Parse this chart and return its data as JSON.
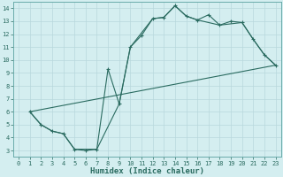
{
  "xlabel": "Humidex (Indice chaleur)",
  "bg_color": "#d4eef0",
  "line_color": "#2a6b60",
  "grid_color": "#b8d8dc",
  "xlim": [
    -0.5,
    23.5
  ],
  "ylim": [
    2.5,
    14.5
  ],
  "xticks": [
    0,
    1,
    2,
    3,
    4,
    5,
    6,
    7,
    8,
    9,
    10,
    11,
    12,
    13,
    14,
    15,
    16,
    17,
    18,
    19,
    20,
    21,
    22,
    23
  ],
  "yticks": [
    3,
    4,
    5,
    6,
    7,
    8,
    9,
    10,
    11,
    12,
    13,
    14
  ],
  "line1_x": [
    1,
    2,
    3,
    4,
    5,
    6,
    7,
    8,
    9,
    10,
    11,
    12,
    13,
    14,
    15,
    16,
    17,
    18,
    19,
    20,
    21,
    22,
    23
  ],
  "line1_y": [
    6.0,
    5.0,
    4.5,
    4.3,
    3.1,
    3.0,
    3.1,
    9.3,
    6.6,
    11.0,
    11.9,
    13.2,
    13.3,
    14.2,
    13.4,
    13.1,
    13.5,
    12.7,
    13.0,
    12.9,
    11.6,
    10.4,
    9.6
  ],
  "line2_x": [
    1,
    2,
    3,
    4,
    5,
    7,
    9,
    10,
    12,
    13,
    14,
    15,
    16,
    18,
    20,
    21,
    22,
    23
  ],
  "line2_y": [
    6.0,
    5.0,
    4.5,
    4.3,
    3.1,
    3.1,
    6.6,
    11.0,
    13.2,
    13.3,
    14.2,
    13.4,
    13.1,
    12.7,
    12.9,
    11.6,
    10.4,
    9.6
  ],
  "line3_x": [
    1,
    23
  ],
  "line3_y": [
    6.0,
    9.6
  ],
  "tick_fontsize": 5.0,
  "xlabel_fontsize": 6.5
}
